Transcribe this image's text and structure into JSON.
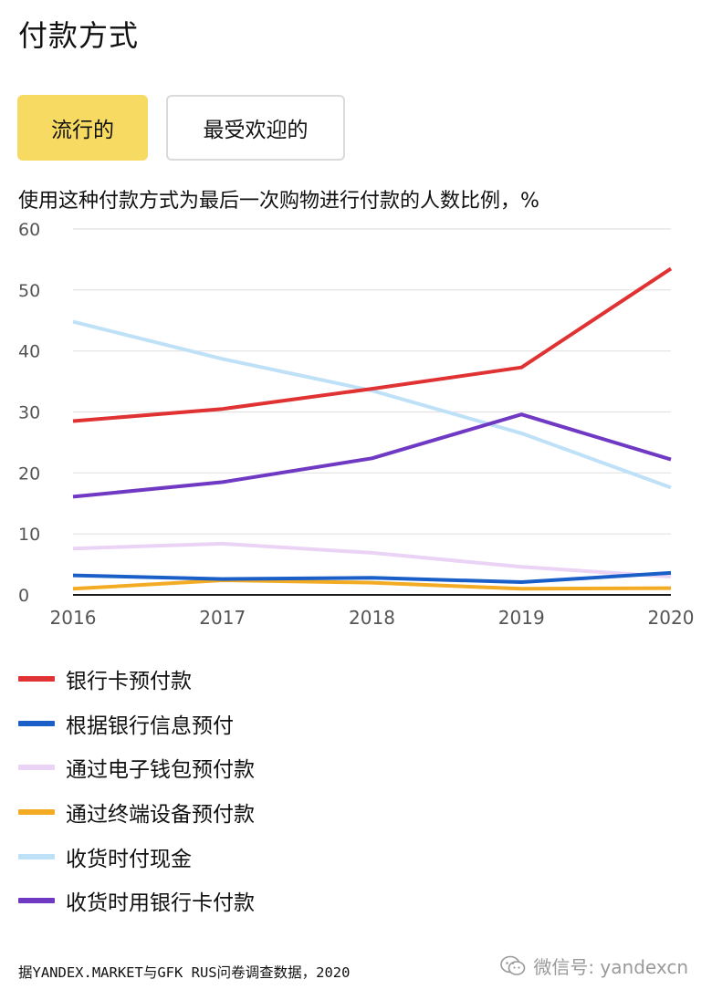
{
  "page": {
    "title": "付款方式",
    "tabs": [
      {
        "label": "流行的",
        "active": true
      },
      {
        "label": "最受欢迎的",
        "active": false
      }
    ],
    "subtitle": "使用这种付款方式为最后一次购物进行付款的人数比例，%",
    "source": "据YANDEX.MARKET与GFK RUS问卷调查数据，2020",
    "watermark": "微信号: yandexcn",
    "watermark_icon": "wechat-icon"
  },
  "colors": {
    "tab_active_bg": "#f7da62",
    "tab_inactive_border": "#dadada",
    "grid": "#e2e2e2",
    "axis": "#1a1a1a"
  },
  "chart_data": {
    "type": "line",
    "x": [
      "2016",
      "2017",
      "2018",
      "2019",
      "2020"
    ],
    "ylim": [
      0,
      60
    ],
    "yticks": [
      "0",
      "10",
      "20",
      "30",
      "40",
      "50",
      "60"
    ],
    "grid": true,
    "legend_position": "bottom",
    "series": [
      {
        "name": "银行卡预付款",
        "color": "#e03232",
        "values": [
          28.5,
          30.5,
          33.8,
          37.3,
          53.5
        ]
      },
      {
        "name": "根据银行信息预付",
        "color": "#1a5fc8",
        "values": [
          3.2,
          2.6,
          2.8,
          2.1,
          3.6
        ]
      },
      {
        "name": "通过电子钱包预付款",
        "color": "#ebd3f6",
        "values": [
          7.6,
          8.4,
          6.9,
          4.6,
          3.0
        ]
      },
      {
        "name": "通过终端设备预付款",
        "color": "#f3ab24",
        "values": [
          1.0,
          2.4,
          2.0,
          1.0,
          1.1
        ]
      },
      {
        "name": "收货时付现金",
        "color": "#bfe1f8",
        "values": [
          44.8,
          38.7,
          33.5,
          26.5,
          17.6
        ]
      },
      {
        "name": "收货时用银行卡付款",
        "color": "#7039c4",
        "values": [
          16.1,
          18.5,
          22.4,
          29.6,
          22.2
        ]
      }
    ]
  }
}
